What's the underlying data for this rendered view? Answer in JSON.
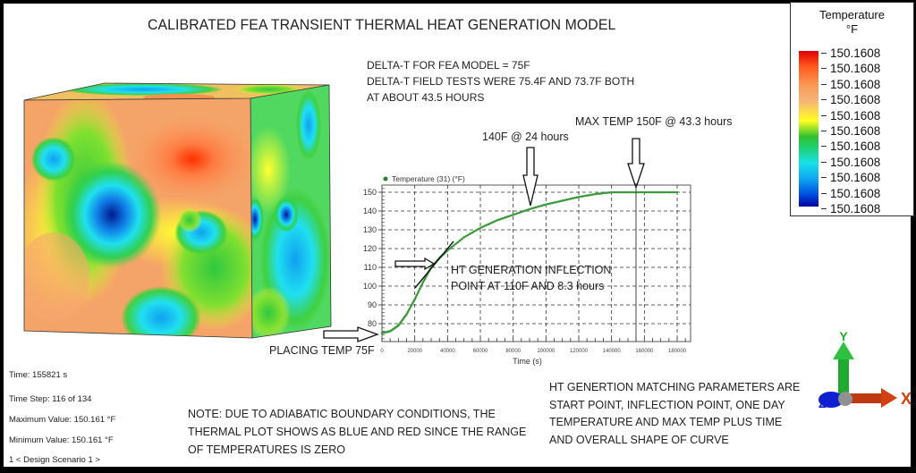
{
  "title": "CALIBRATED FEA TRANSIENT THERMAL HEAT GENERATION MODEL",
  "annotations": {
    "delta_t_lines": [
      "DELTA-T FOR FEA MODEL = 75F",
      "DELTA-T FIELD TESTS WERE 75.4F AND 73.7F BOTH",
      "AT ABOUT 43.5 HOURS"
    ],
    "max_temp": "MAX  TEMP 150F @ 43.3 hours",
    "one_day": "140F @ 24 hours",
    "inflection_lines": [
      "HT GENERATION INFLECTION",
      "POINT AT 110F AND 8.3 hours"
    ],
    "placing_temp": "PLACING TEMP 75F",
    "note_lines": [
      "NOTE: DUE TO ADIABATIC BOUNDARY CONDITIONS, THE",
      "THERMAL PLOT SHOWS AS BLUE AND RED SINCE THE RANGE",
      "OF TEMPERATURES IS ZERO"
    ],
    "matching_lines": [
      "HT GENERTION MATCHING PARAMETERS ARE",
      "START POINT, INFLECTION POINT, ONE DAY",
      "TEMPERATURE AND MAX TEMP PLUS TIME",
      "AND OVERALL SHAPE OF CURVE"
    ]
  },
  "legend": {
    "title_line1": "Temperature",
    "title_line2": "°F",
    "ticks": [
      "150.1608",
      "150.1608",
      "150.1608",
      "150.1608",
      "150.1608",
      "150.1608",
      "150.1608",
      "150.1608",
      "150.1608",
      "150.1608",
      "150.1608"
    ],
    "colors": [
      "#e10000",
      "#ff5a1e",
      "#f99a55",
      "#f6b47a",
      "#ffff20",
      "#30c030",
      "#18e0e8",
      "#10a8f0",
      "#0050e0",
      "#0000a0"
    ]
  },
  "status": {
    "time": "Time: 155821 s",
    "time_step": "Time Step:  116 of 134",
    "max_value": "Maximum Value: 150.161 °F",
    "min_value": "Minimum Value: 150.161 °F",
    "scenario": "1 < Design Scenario 1 >"
  },
  "triad": {
    "x": "X",
    "y": "Y",
    "z": "Z",
    "x_color": "#d04010",
    "y_color": "#20b030",
    "z_color": "#1020d0"
  },
  "chart_data": {
    "type": "scatter",
    "title": "",
    "legend": [
      "Temperature  (31) (°F)"
    ],
    "legend_position": "top-left",
    "xlabel": "Time (s)",
    "ylabel": "",
    "xlim": [
      0,
      180000
    ],
    "ylim": [
      72,
      153
    ],
    "grid": true,
    "x_ticks": [
      0,
      20000,
      40000,
      60000,
      80000,
      100000,
      120000,
      140000,
      160000,
      180000
    ],
    "y_ticks": [
      80,
      90,
      100,
      110,
      120,
      130,
      140,
      150
    ],
    "series": [
      {
        "name": "Temperature  (31) (°F)",
        "color": "#2e8b2e",
        "x": [
          0,
          5000,
          10000,
          15000,
          20000,
          25000,
          30000,
          35000,
          40000,
          50000,
          60000,
          70000,
          80000,
          90000,
          100000,
          110000,
          120000,
          130000,
          140000,
          150000,
          160000,
          170000,
          180000
        ],
        "y": [
          75,
          76,
          79,
          85,
          93,
          102,
          110,
          115,
          119,
          126,
          131,
          135,
          138,
          141,
          143.5,
          145.5,
          147.5,
          149,
          150,
          150,
          150,
          150,
          150
        ]
      }
    ],
    "markers": {
      "vertical_line_x": 155821,
      "tangent_at": [
        30000,
        110
      ]
    }
  }
}
